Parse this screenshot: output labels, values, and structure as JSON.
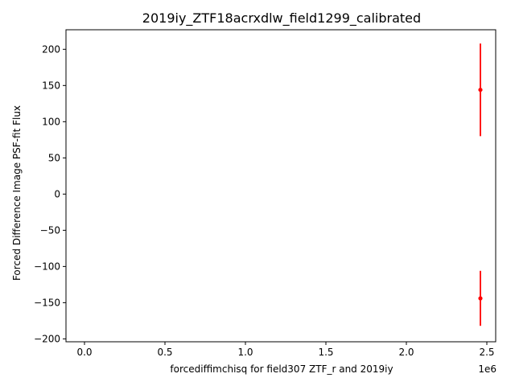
{
  "chart_data": {
    "type": "scatter",
    "title": "2019iy_ZTF18acrxdlw_field1299_calibrated",
    "xlabel": "forcediffimchisq for field307 ZTF_r and 2019iy",
    "ylabel": "Forced Difference Image PSF-fit Flux",
    "x_offset_label": "1e6",
    "xlim": [
      -0.115,
      2.555
    ],
    "ylim": [
      -204,
      227
    ],
    "xticks": [
      0.0,
      0.5,
      1.0,
      1.5,
      2.0,
      2.5
    ],
    "xtick_labels": [
      "0.0",
      "0.5",
      "1.0",
      "1.5",
      "2.0",
      "2.5"
    ],
    "yticks": [
      -200,
      -150,
      -100,
      -50,
      0,
      50,
      100,
      150,
      200
    ],
    "ytick_labels": [
      "−200",
      "−150",
      "−100",
      "−50",
      "0",
      "50",
      "100",
      "150",
      "200"
    ],
    "grid": false,
    "series": [
      {
        "color": "#ff0000",
        "points": [
          {
            "x": 2.46,
            "y": 144,
            "yerr": 64
          },
          {
            "x": 2.46,
            "y": -144,
            "yerr": 38
          }
        ]
      }
    ]
  }
}
